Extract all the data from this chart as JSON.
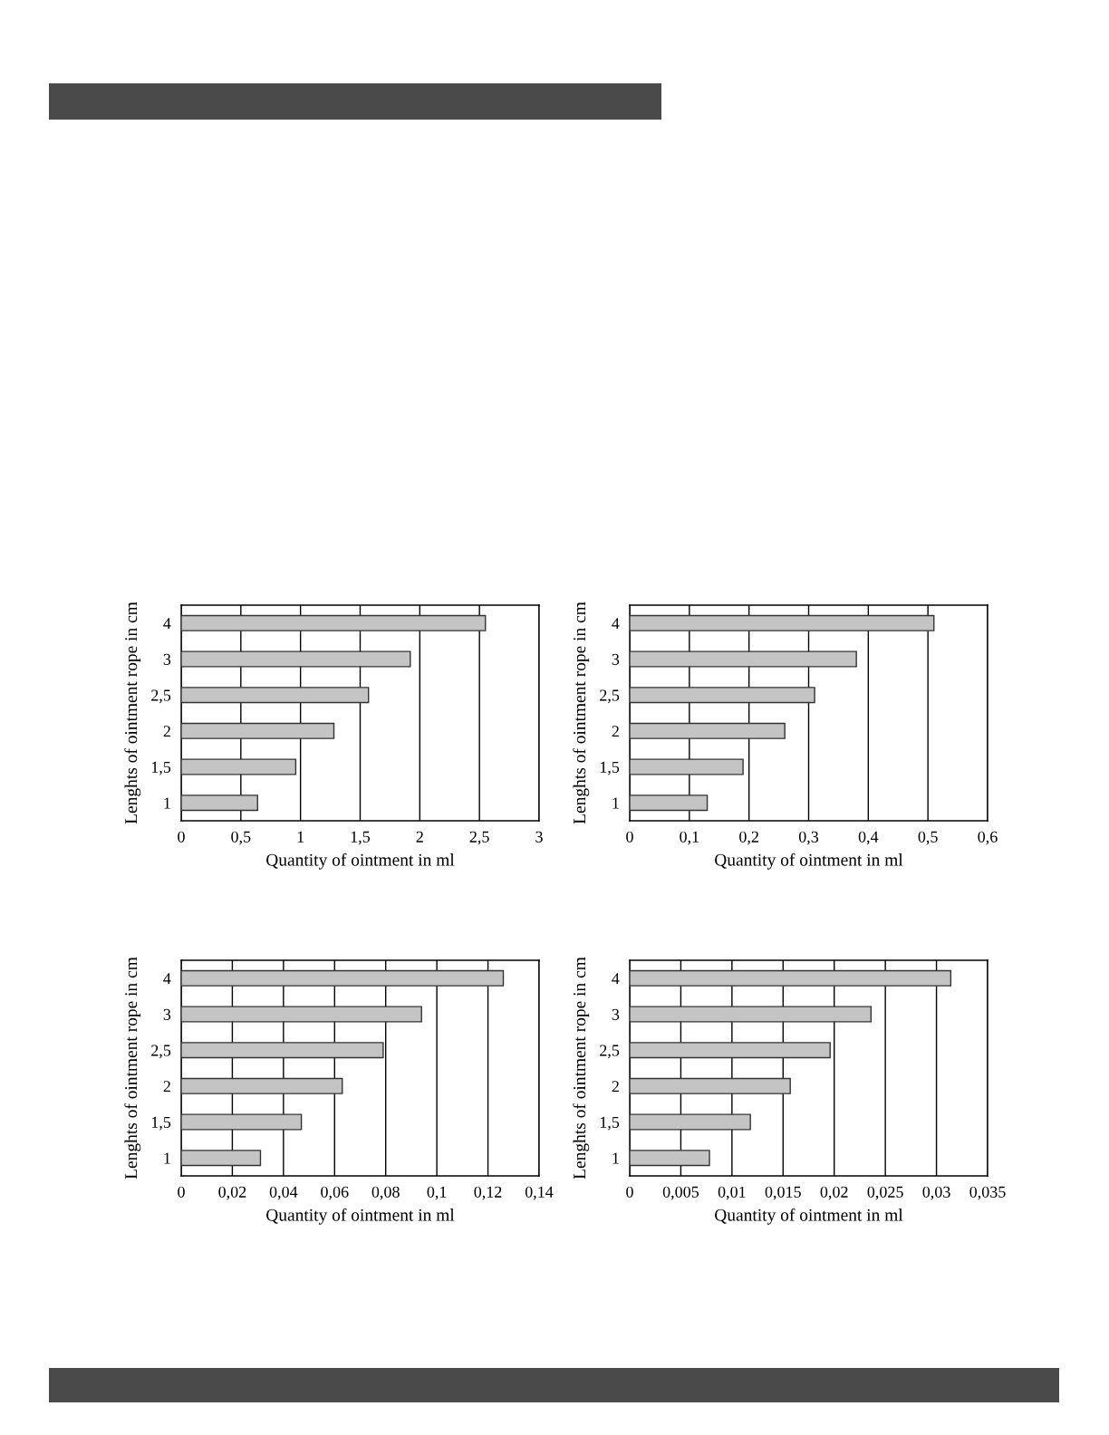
{
  "chart_data": [
    {
      "type": "bar",
      "orientation": "horizontal",
      "categories": [
        "4",
        "3",
        "2,5",
        "2",
        "1,5",
        "1"
      ],
      "values": [
        2.55,
        1.92,
        1.57,
        1.28,
        0.96,
        0.64
      ],
      "color": "#c4c4c4",
      "xlim": [
        0,
        3
      ],
      "xticks": [
        0,
        {
          "value": 0.5,
          "label": "0,5"
        },
        1,
        {
          "value": 1.5,
          "label": "1,5"
        },
        2,
        {
          "value": 2.5,
          "label": "2,5"
        },
        3
      ],
      "xlabel": "Quantity of ointment in ml",
      "ylabel": "Lenghts of ointment rope in cm",
      "grid": "x"
    },
    {
      "type": "bar",
      "orientation": "horizontal",
      "categories": [
        "4",
        "3",
        "2,5",
        "2",
        "1,5",
        "1"
      ],
      "values": [
        0.51,
        0.38,
        0.31,
        0.26,
        0.19,
        0.13
      ],
      "color": "#c4c4c4",
      "xlim": [
        0,
        0.6
      ],
      "xticks": [
        0,
        {
          "value": 0.1,
          "label": "0,1"
        },
        {
          "value": 0.2,
          "label": "0,2"
        },
        {
          "value": 0.3,
          "label": "0,3"
        },
        {
          "value": 0.4,
          "label": "0,4"
        },
        {
          "value": 0.5,
          "label": "0,5"
        },
        {
          "value": 0.6,
          "label": "0,6"
        }
      ],
      "xlabel": "Quantity of ointment in ml",
      "ylabel": "Lenghts of ointment rope in cm",
      "grid": "x"
    },
    {
      "type": "bar",
      "orientation": "horizontal",
      "categories": [
        "4",
        "3",
        "2,5",
        "2",
        "1,5",
        "1"
      ],
      "values": [
        0.126,
        0.094,
        0.079,
        0.063,
        0.047,
        0.031
      ],
      "color": "#c4c4c4",
      "xlim": [
        0,
        0.14
      ],
      "xticks": [
        0,
        {
          "value": 0.02,
          "label": "0,02"
        },
        {
          "value": 0.04,
          "label": "0,04"
        },
        {
          "value": 0.06,
          "label": "0,06"
        },
        {
          "value": 0.08,
          "label": "0,08"
        },
        {
          "value": 0.1,
          "label": "0,1"
        },
        {
          "value": 0.12,
          "label": "0,12"
        },
        {
          "value": 0.14,
          "label": "0,14"
        }
      ],
      "xlabel": "Quantity of ointment in ml",
      "ylabel": "Lenghts of ointment rope in cm",
      "grid": "x"
    },
    {
      "type": "bar",
      "orientation": "horizontal",
      "categories": [
        "4",
        "3",
        "2,5",
        "2",
        "1,5",
        "1"
      ],
      "values": [
        0.0314,
        0.0236,
        0.0196,
        0.0157,
        0.0118,
        0.0078
      ],
      "color": "#c4c4c4",
      "xlim": [
        0,
        0.035
      ],
      "xticks": [
        0,
        {
          "value": 0.005,
          "label": "0,005"
        },
        {
          "value": 0.01,
          "label": "0,01"
        },
        {
          "value": 0.015,
          "label": "0,015"
        },
        {
          "value": 0.02,
          "label": "0,02"
        },
        {
          "value": 0.025,
          "label": "0,025"
        },
        {
          "value": 0.03,
          "label": "0,03"
        },
        {
          "value": 0.035,
          "label": "0,035"
        }
      ],
      "xlabel": "Quantity of ointment in ml",
      "ylabel": "Lenghts of ointment rope in cm",
      "grid": "x"
    }
  ]
}
